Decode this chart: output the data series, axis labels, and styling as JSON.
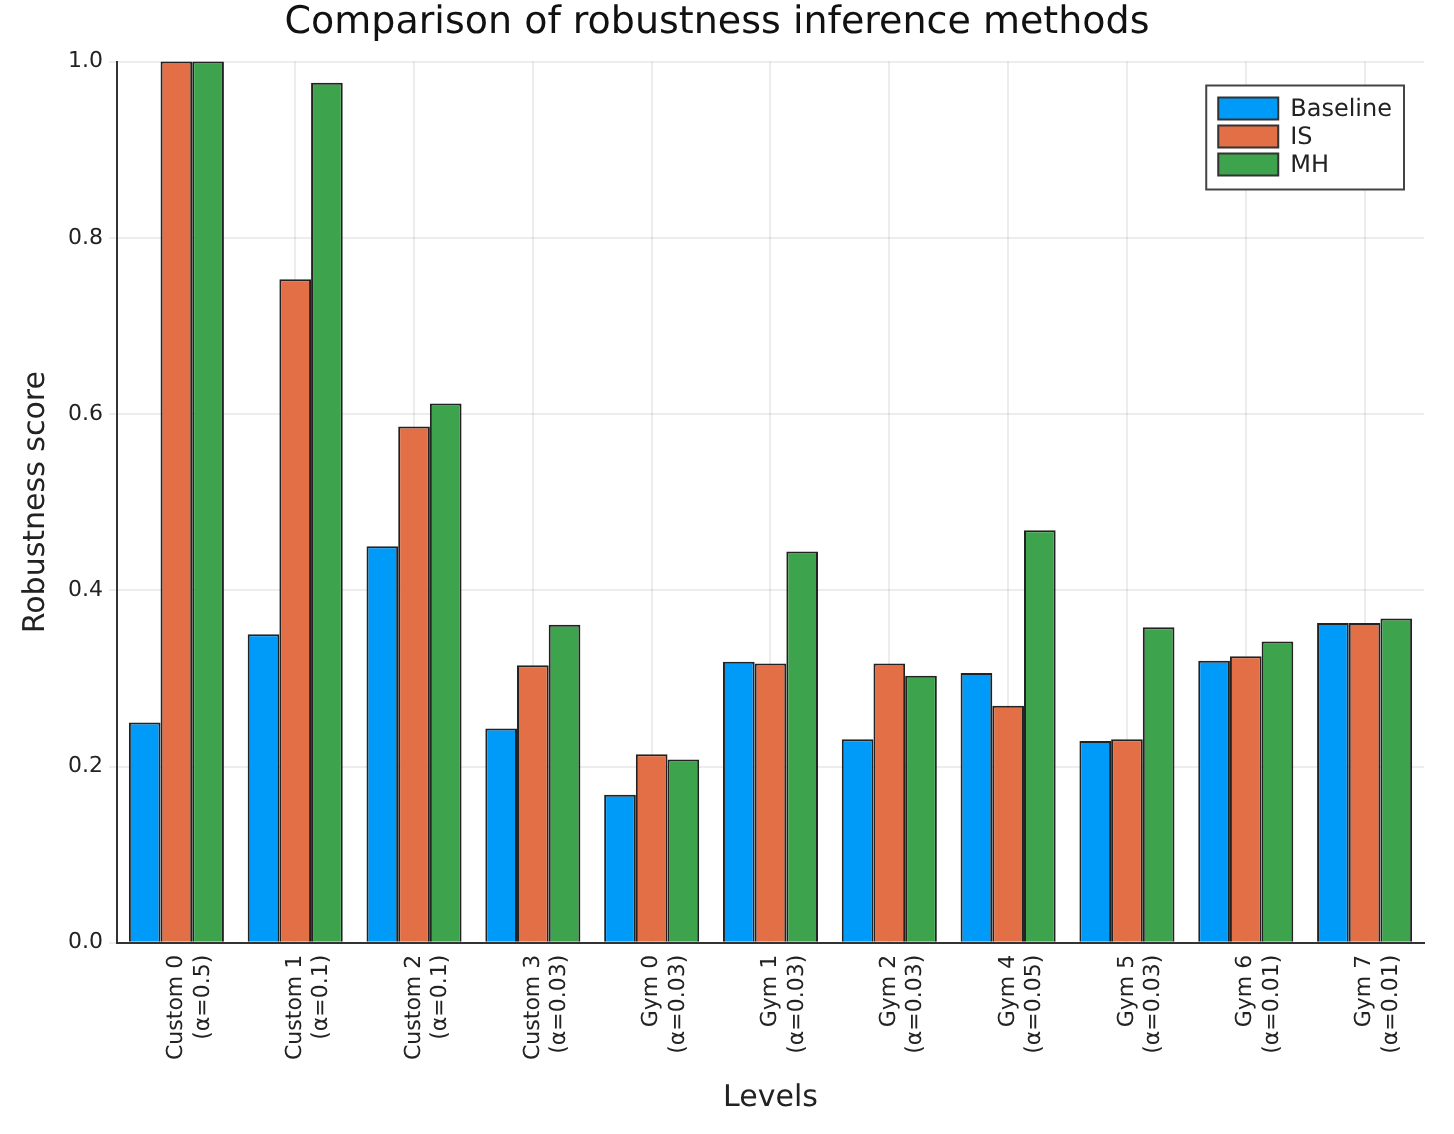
{
  "chart_data": {
    "type": "bar",
    "title": "Comparison of robustness inference methods",
    "xlabel": "Levels",
    "ylabel": "Robustness score",
    "categories": [
      "Custom 0\n(α=0.5)",
      "Custom 1\n(α=0.1)",
      "Custom 2\n(α=0.1)",
      "Custom 3\n(α=0.03)",
      "Gym 0\n(α=0.03)",
      "Gym 1\n(α=0.03)",
      "Gym 2\n(α=0.03)",
      "Gym 4\n(α=0.05)",
      "Gym 5\n(α=0.03)",
      "Gym 6\n(α=0.01)",
      "Gym 7\n(α=0.01)"
    ],
    "series": [
      {
        "name": "Baseline",
        "color": "#009af9",
        "values": [
          0.25,
          0.35,
          0.45,
          0.243,
          0.168,
          0.319,
          0.231,
          0.306,
          0.229,
          0.32,
          0.363
        ]
      },
      {
        "name": "IS",
        "color": "#e26f46",
        "values": [
          1.0,
          0.753,
          0.586,
          0.315,
          0.214,
          0.317,
          0.317,
          0.269,
          0.231,
          0.325,
          0.363
        ]
      },
      {
        "name": "MH",
        "color": "#3da44d",
        "values": [
          1.0,
          0.976,
          0.612,
          0.361,
          0.208,
          0.444,
          0.303,
          0.468,
          0.358,
          0.342,
          0.368
        ]
      }
    ],
    "ylim": [
      0,
      1
    ],
    "yticks": [
      {
        "value": 0,
        "label": "0.0"
      },
      {
        "value": 0.2,
        "label": "0.2"
      },
      {
        "value": 0.4,
        "label": "0.4"
      },
      {
        "value": 0.6,
        "label": "0.6"
      },
      {
        "value": 0.8,
        "label": "0.8"
      },
      {
        "value": 1,
        "label": "1.0"
      }
    ],
    "grid": true,
    "legend": "top right"
  }
}
